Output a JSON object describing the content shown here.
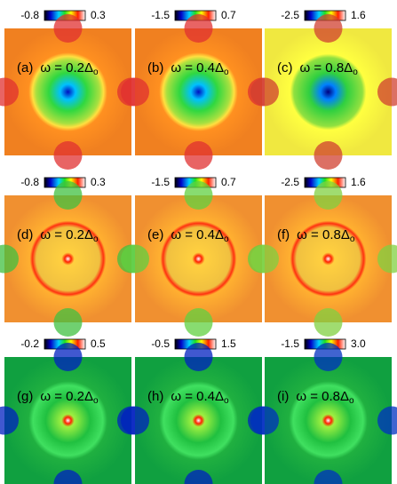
{
  "panels": [
    {
      "label": "(a)",
      "text": "ω = 0.2Δ",
      "subscript": "o",
      "colorbar": {
        "min": "-0.8",
        "max": "0.3"
      }
    },
    {
      "label": "(b)",
      "text": "ω = 0.4Δ",
      "subscript": "o",
      "colorbar": {
        "min": "-1.5",
        "max": "0.7"
      }
    },
    {
      "label": "(c)",
      "text": "ω = 0.8Δ",
      "subscript": "o",
      "colorbar": {
        "min": "-2.5",
        "max": "1.6"
      }
    },
    {
      "label": "(d)",
      "text": "ω = 0.2Δ",
      "subscript": "o",
      "colorbar": {
        "min": "-0.8",
        "max": "0.3"
      }
    },
    {
      "label": "(e)",
      "text": "ω = 0.4Δ",
      "subscript": "o",
      "colorbar": {
        "min": "-1.5",
        "max": "0.7"
      }
    },
    {
      "label": "(f)",
      "text": "ω = 0.8Δ",
      "subscript": "o",
      "colorbar": {
        "min": "-2.5",
        "max": "1.6"
      }
    },
    {
      "label": "(g)",
      "text": "ω = 0.2Δ",
      "subscript": "o",
      "colorbar": {
        "min": "-0.2",
        "max": "0.5"
      }
    },
    {
      "label": "(h)",
      "text": "ω = 0.4Δ",
      "subscript": "o",
      "colorbar": {
        "min": "-0.5",
        "max": "1.5"
      }
    },
    {
      "label": "(i)",
      "text": "ω = 0.8Δ",
      "subscript": "o",
      "colorbar": {
        "min": "-1.5",
        "max": "3.0"
      }
    }
  ]
}
